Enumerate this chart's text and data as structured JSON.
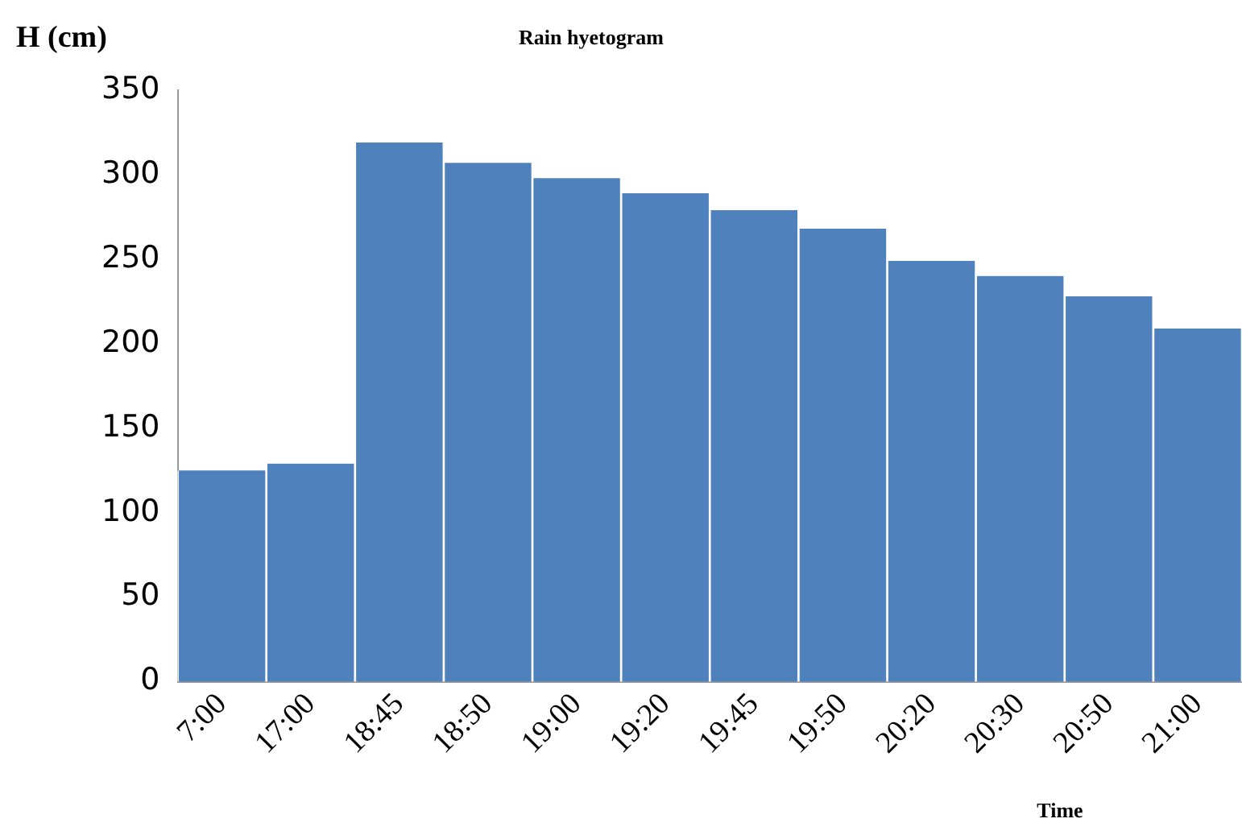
{
  "chart_data": {
    "type": "bar",
    "title": "Rain hyetogram",
    "xlabel": "Time",
    "ylabel": "H (cm)",
    "categories": [
      "7:00",
      "17:00",
      "18:45",
      "18:50",
      "19:00",
      "19:20",
      "19:45",
      "19:50",
      "20:20",
      "20:30",
      "20:50",
      "21:00"
    ],
    "values": [
      125,
      129,
      319,
      307,
      298,
      289,
      279,
      268,
      249,
      240,
      228,
      209
    ],
    "color": "#4f81bd",
    "ylim": [
      0,
      350
    ],
    "yticks": [
      0,
      50,
      100,
      150,
      200,
      250,
      300,
      350
    ],
    "grid": false,
    "legend": false
  }
}
